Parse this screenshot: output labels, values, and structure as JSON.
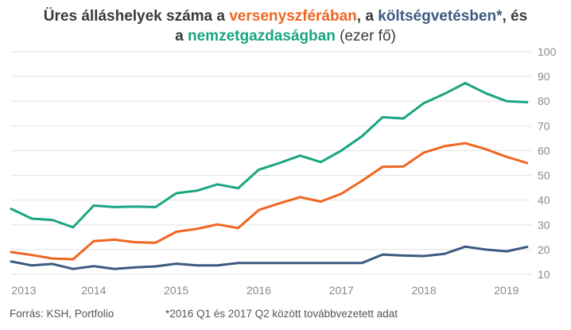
{
  "title": {
    "part1": "Üres álláshelyek száma a ",
    "private": "versenyszférában",
    "part2": ", a ",
    "public": "költségvetésben*",
    "part3": ", és",
    "part4": "a ",
    "national": "nemzetgazdaságban",
    "unit": " (ezer fő)"
  },
  "source": "Forrás: KSH, Portfolio",
  "footnote": "*2016 Q1 és 2017 Q2 között továbbvezetett adat",
  "colors": {
    "private": "#f06522",
    "public": "#3d5a80",
    "national": "#1aa582",
    "grid": "#e2e2e2",
    "axis_text": "#8a8a8a",
    "title_text": "#3a3a3a"
  },
  "chart_data": {
    "type": "line",
    "x": [
      2013.0,
      2013.25,
      2013.5,
      2013.75,
      2014.0,
      2014.25,
      2014.5,
      2014.75,
      2015.0,
      2015.25,
      2015.5,
      2015.75,
      2016.0,
      2016.25,
      2016.5,
      2016.75,
      2017.0,
      2017.25,
      2017.5,
      2017.75,
      2018.0,
      2018.25,
      2018.5,
      2018.75,
      2019.0,
      2019.25
    ],
    "x_ticks": [
      "2013",
      "2014",
      "2015",
      "2016",
      "2017",
      "2018",
      "2019"
    ],
    "y_ticks": [
      10,
      20,
      30,
      40,
      50,
      60,
      70,
      80,
      90,
      100
    ],
    "ylim": [
      10,
      100
    ],
    "xlim": [
      2013.0,
      2019.3
    ],
    "grid": true,
    "y_axis_side": "right",
    "series": [
      {
        "name": "nemzetgazdaságban",
        "key": "national",
        "values": [
          36.5,
          32.5,
          32.0,
          29.0,
          37.8,
          37.2,
          37.4,
          37.2,
          42.8,
          43.8,
          46.4,
          44.8,
          52.3,
          55.0,
          58.0,
          55.4,
          60.0,
          65.8,
          73.5,
          73.0,
          79.2,
          83.0,
          87.3,
          83.2,
          80.0,
          79.6
        ]
      },
      {
        "name": "versenyszférában",
        "key": "private",
        "values": [
          19.0,
          17.8,
          16.4,
          16.1,
          23.4,
          24.0,
          23.0,
          22.8,
          27.2,
          28.4,
          30.2,
          28.7,
          36.0,
          38.7,
          41.2,
          39.4,
          42.6,
          47.8,
          53.5,
          53.6,
          59.2,
          61.8,
          63.0,
          60.6,
          57.5,
          55.0
        ]
      },
      {
        "name": "költségvetésben*",
        "key": "public",
        "values": [
          15.2,
          13.6,
          14.2,
          12.2,
          13.3,
          12.2,
          12.8,
          13.2,
          14.3,
          13.6,
          13.6,
          14.6,
          14.6,
          14.6,
          14.6,
          14.6,
          14.6,
          14.6,
          18.0,
          17.6,
          17.4,
          18.3,
          21.2,
          20.0,
          19.3,
          21.1
        ]
      }
    ]
  }
}
